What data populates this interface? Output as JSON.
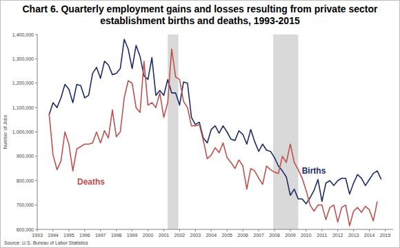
{
  "chart_data": {
    "type": "line",
    "title": "Chart 6. Quarterly employment gains and losses resulting from private sector establishment births and deaths, 1993-2015",
    "y_label": "Number of Jobs",
    "source": "Source: U.S. Bureau of Labor Statistics",
    "x": [
      1993.75,
      1994,
      1994.25,
      1994.5,
      1994.75,
      1995,
      1995.25,
      1995.5,
      1995.75,
      1996,
      1996.25,
      1996.5,
      1996.75,
      1997,
      1997.25,
      1997.5,
      1997.75,
      1998,
      1998.25,
      1998.5,
      1998.75,
      1999,
      1999.25,
      1999.5,
      1999.75,
      2000,
      2000.25,
      2000.5,
      2000.75,
      2001,
      2001.25,
      2001.5,
      2001.75,
      2002,
      2002.25,
      2002.5,
      2002.75,
      2003,
      2003.25,
      2003.5,
      2003.75,
      2004,
      2004.25,
      2004.5,
      2004.75,
      2005,
      2005.25,
      2005.5,
      2005.75,
      2006,
      2006.25,
      2006.5,
      2006.75,
      2007,
      2007.25,
      2007.5,
      2007.75,
      2008,
      2008.25,
      2008.5,
      2008.75,
      2009,
      2009.25,
      2009.5,
      2009.75,
      2010,
      2010.25,
      2010.5,
      2010.75,
      2011,
      2011.25,
      2011.5,
      2011.75,
      2012,
      2012.25,
      2012.5,
      2012.75,
      2013,
      2013.25,
      2013.5,
      2013.75,
      2014,
      2014.25,
      2014.5,
      2014.75
    ],
    "series": [
      {
        "name": "Births",
        "color": "#1c2a68",
        "values": [
          1070000,
          1120000,
          1100000,
          1140000,
          1195000,
          1175000,
          1120000,
          1195000,
          1190000,
          1140000,
          1150000,
          1240000,
          1265000,
          1220000,
          1290000,
          1275000,
          1235000,
          1240000,
          1260000,
          1380000,
          1340000,
          1260000,
          1355000,
          1310000,
          1230000,
          1215000,
          1305000,
          1150000,
          1170000,
          1150000,
          1215000,
          1160000,
          1160000,
          1110000,
          1205000,
          1200000,
          1060000,
          1030000,
          1040000,
          975000,
          955000,
          1010000,
          1025000,
          995000,
          1025000,
          1000000,
          970000,
          965000,
          1005000,
          990000,
          950000,
          1010000,
          960000,
          920000,
          950000,
          925000,
          920000,
          895000,
          860000,
          840000,
          815000,
          740000,
          765000,
          725000,
          725000,
          705000,
          730000,
          760000,
          805000,
          715000,
          790000,
          800000,
          780000,
          800000,
          810000,
          810000,
          745000,
          790000,
          825000,
          810000,
          780000,
          805000,
          830000,
          840000,
          805000
        ]
      },
      {
        "name": "Deaths",
        "color": "#c0504d",
        "values": [
          1075000,
          905000,
          845000,
          880000,
          1000000,
          950000,
          840000,
          930000,
          940000,
          950000,
          950000,
          955000,
          1000000,
          955000,
          1005000,
          975000,
          1090000,
          980000,
          1000000,
          1140000,
          1210000,
          1200000,
          1100000,
          1080000,
          1290000,
          1110000,
          1120000,
          1100000,
          1160000,
          1060000,
          1120000,
          1340000,
          1225000,
          1215000,
          1125000,
          1100000,
          1025000,
          1025000,
          1030000,
          965000,
          890000,
          905000,
          935000,
          915000,
          955000,
          895000,
          875000,
          850000,
          885000,
          860000,
          765000,
          850000,
          840000,
          810000,
          785000,
          860000,
          845000,
          835000,
          830000,
          900000,
          875000,
          950000,
          875000,
          845000,
          810000,
          760000,
          700000,
          675000,
          700000,
          700000,
          640000,
          690000,
          700000,
          630000,
          690000,
          700000,
          615000,
          675000,
          690000,
          670000,
          695000,
          680000,
          635000,
          715000,
          null
        ]
      }
    ],
    "xlim": [
      1993,
      2015.5
    ],
    "xticks": [
      1993,
      1994,
      1995,
      1996,
      1997,
      1998,
      1999,
      2000,
      2001,
      2002,
      2003,
      2004,
      2005,
      2006,
      2007,
      2008,
      2009,
      2010,
      2011,
      2012,
      2013,
      2014,
      2015
    ],
    "ylim": [
      600000,
      1400000
    ],
    "yticks": [
      {
        "value": 600000,
        "label": "600,000"
      },
      {
        "value": 700000,
        "label": "700,000"
      },
      {
        "value": 800000,
        "label": "800,000"
      },
      {
        "value": 900000,
        "label": "900,000"
      },
      {
        "value": 1000000,
        "label": "1,000,000"
      },
      {
        "value": 1100000,
        "label": "1,100,000"
      },
      {
        "value": 1200000,
        "label": "1,200,000"
      },
      {
        "value": 1300000,
        "label": "1,300,000"
      },
      {
        "value": 1400000,
        "label": "1,400,000"
      }
    ],
    "shaded_ranges": [
      [
        2001.25,
        2001.92
      ],
      [
        2007.92,
        2009.5
      ]
    ],
    "grid": false
  }
}
